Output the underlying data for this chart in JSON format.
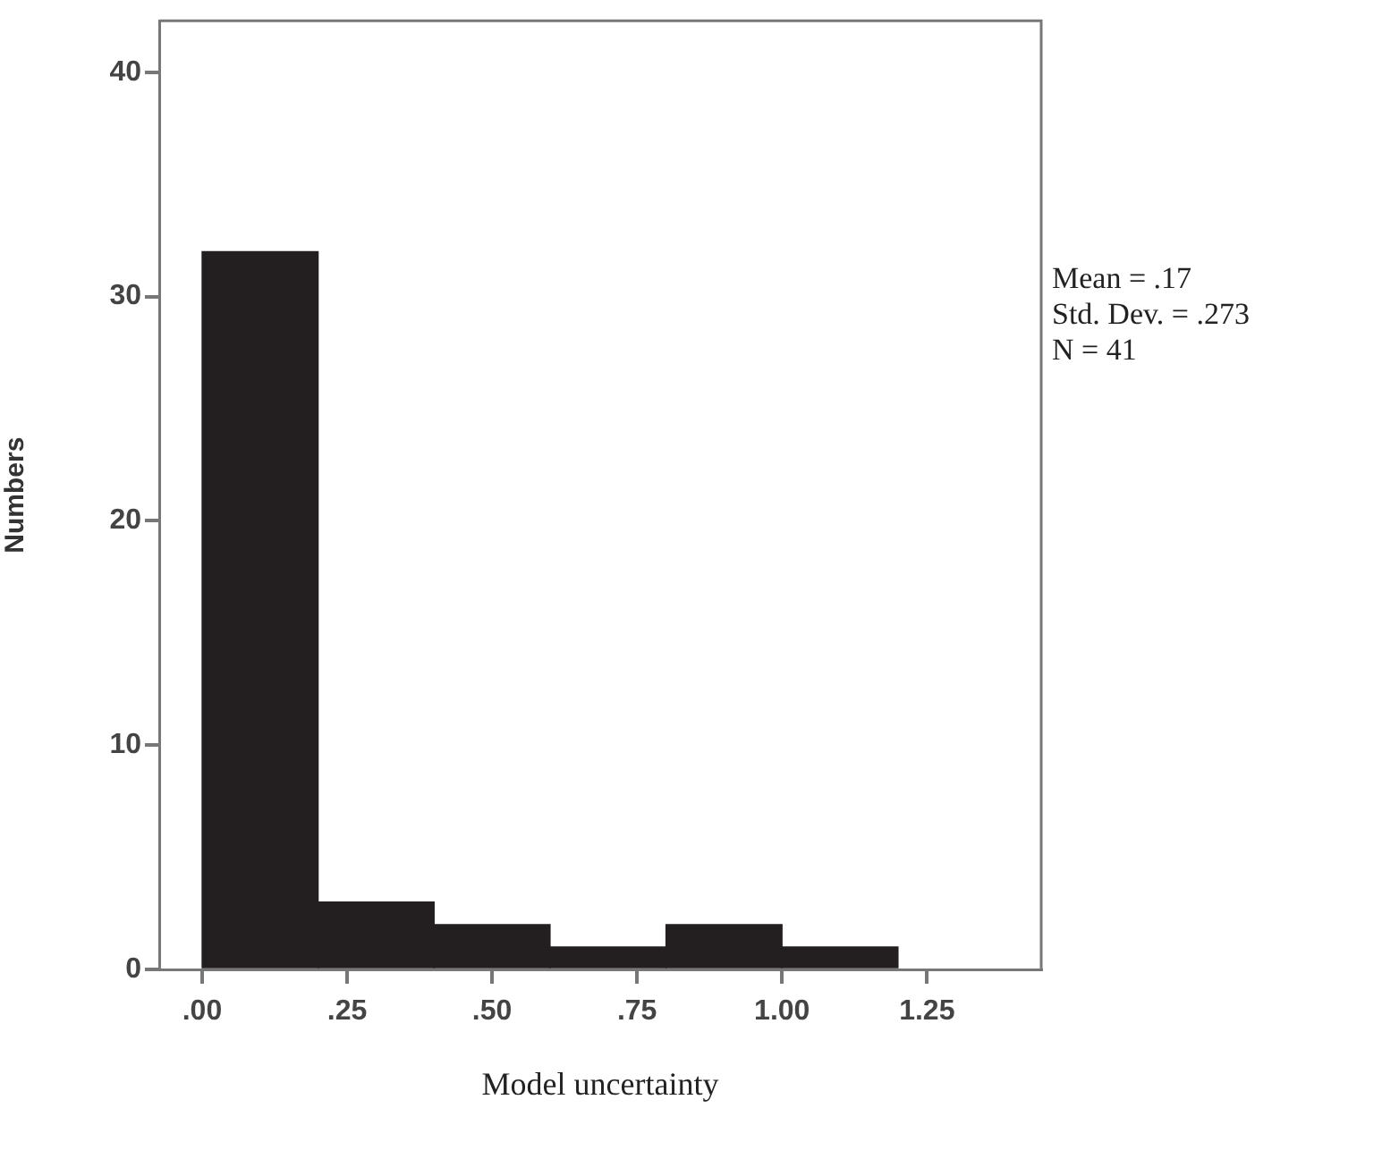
{
  "chart_data": {
    "type": "histogram",
    "xlabel": "Model uncertainty",
    "ylabel": "Numbers",
    "bins": [
      0,
      0.2,
      0.4,
      0.6,
      0.8,
      1.0,
      1.2
    ],
    "values": [
      32,
      3,
      2,
      1,
      2,
      1
    ],
    "color": "#231f20",
    "xlim": [
      -0.074,
      1.447
    ],
    "ylim": [
      0,
      42.3
    ],
    "xticks": [
      {
        "value": 0,
        "label": ".00"
      },
      {
        "value": 0.25,
        "label": ".25"
      },
      {
        "value": 0.5,
        "label": ".50"
      },
      {
        "value": 0.75,
        "label": ".75"
      },
      {
        "value": 1,
        "label": "1.00"
      },
      {
        "value": 1.25,
        "label": "1.25"
      }
    ],
    "yticks": [
      0,
      10,
      20,
      30,
      40
    ],
    "annotations": [
      "Mean = .17",
      "Std. Dev. = .273",
      "N = 41"
    ]
  }
}
